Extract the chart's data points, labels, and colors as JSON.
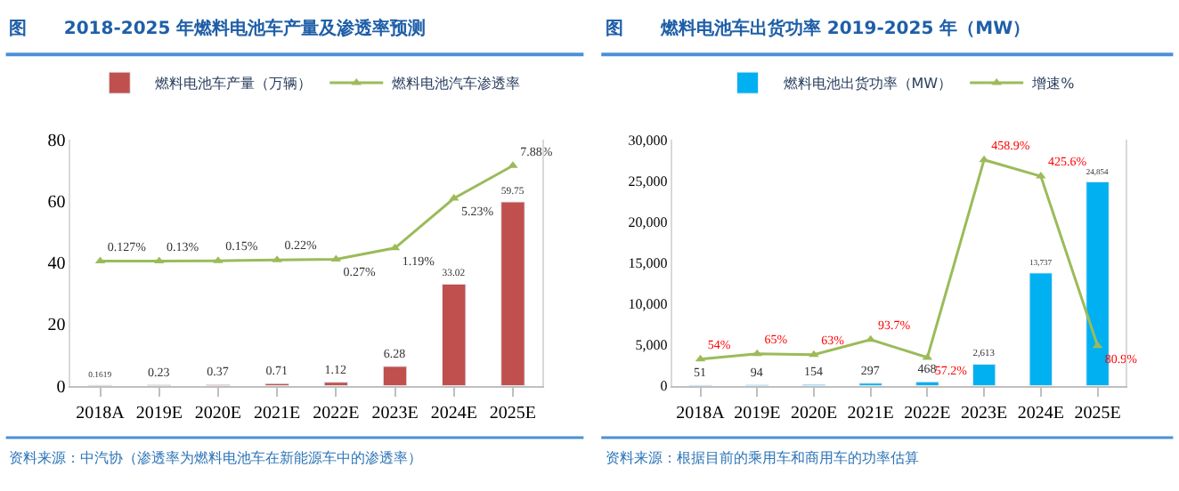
{
  "chart_data": [
    {
      "type": "bar",
      "title": "图      2018-2025 年燃料电池车产量及渗透率预测",
      "categories": [
        "2018A",
        "2019E",
        "2020E",
        "2021E",
        "2022E",
        "2023E",
        "2024E",
        "2025E"
      ],
      "series": [
        {
          "name": "燃料电池车产量（万辆）",
          "color": "#c0504d",
          "values": [
            0.1619,
            0.23,
            0.37,
            0.71,
            1.12,
            6.28,
            33.02,
            59.75
          ],
          "value_labels": [
            "0.1619",
            "0.23",
            "0.37",
            "0.71",
            "1.12",
            "6.28",
            "33.02",
            "59.75"
          ]
        },
        {
          "name": "燃料电池汽车渗透率",
          "type": "line",
          "axis": "y2",
          "color": "#9bbb59",
          "values": [
            0.127,
            0.13,
            0.15,
            0.22,
            0.27,
            1.19,
            5.23,
            7.88
          ],
          "value_labels": [
            "0.127%",
            "0.13%",
            "0.15%",
            "0.22%",
            "0.27%",
            "1.19%",
            "5.23%",
            "7.88%"
          ]
        }
      ],
      "ylim": [
        0,
        80
      ],
      "yticks": [
        0,
        20,
        40,
        60,
        80
      ],
      "y2lim": [
        -10,
        10
      ],
      "tick_labels": "xy",
      "marker": "triangle",
      "legend": "top",
      "annotations": [
        "资料来源：中汽协（渗透率为燃料电池车在新能源车中的渗透率）"
      ]
    },
    {
      "type": "bar",
      "title": "图      燃料电池车出货功率 2019-2025 年（MW）",
      "categories": [
        "2018A",
        "2019E",
        "2020E",
        "2021E",
        "2022E",
        "2023E",
        "2024E",
        "2025E"
      ],
      "series": [
        {
          "name": "燃料电池出货功率（MW）",
          "color": "#00b0f0",
          "values": [
            51,
            94,
            154,
            297,
            468,
            2613,
            13737,
            24854
          ],
          "value_labels": [
            "51",
            "94",
            "154",
            "297",
            "468",
            "2,613",
            "13,737",
            "24,854"
          ]
        },
        {
          "name": "增速%",
          "type": "line",
          "axis": "y2",
          "color": "#9bbb59",
          "values": [
            54,
            65,
            63,
            93.7,
            57.2,
            458.9,
            425.6,
            80.9
          ],
          "value_labels": [
            "54%",
            "65%",
            "63%",
            "93.7%",
            "57.2%",
            "458.9%",
            "425.6%",
            "80.9%"
          ]
        }
      ],
      "ylim": [
        0,
        30000
      ],
      "yticks": [
        0,
        {
          "value": 5000,
          "label": "5,000"
        },
        {
          "value": 10000,
          "label": "10,000"
        },
        {
          "value": 15000,
          "label": "15,000"
        },
        {
          "value": 20000,
          "label": "20,000"
        },
        {
          "value": 25000,
          "label": "25,000"
        },
        {
          "value": 30000,
          "label": "30,000"
        }
      ],
      "y2lim": [
        0,
        500
      ],
      "tick_labels": "xy",
      "marker": "triangle",
      "legend": "top",
      "annotations": [
        "资料来源：根据目前的乘用车和商用车的功率估算"
      ]
    }
  ]
}
